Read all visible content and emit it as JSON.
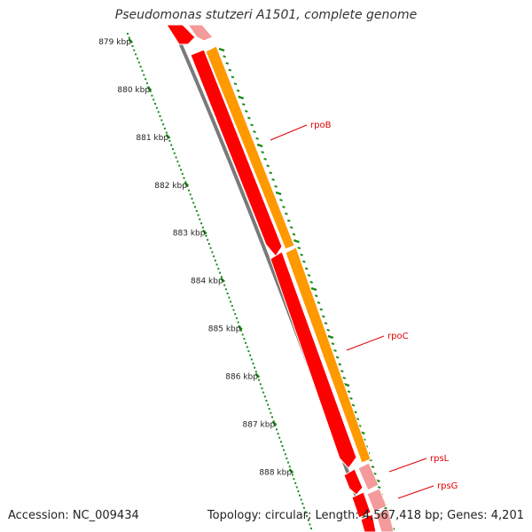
{
  "title": "Pseudomonas stutzeri A1501, complete genome",
  "accession": "Accession: NC_009434",
  "topology": "Topology: circular; Length: 4,567,418 bp; Genes: 4,201",
  "colors": {
    "backbone": "#7a7a7a",
    "cds_forward": "#ff0000",
    "cds_forward_light": "#f49a9a",
    "operon": "#ff9900",
    "ticks": "#1a8a1a",
    "label": "#e00000"
  },
  "scale": {
    "unit": "kbp",
    "labels": [
      "879 kbp",
      "880 kbp",
      "881 kbp",
      "882 kbp",
      "883 kbp",
      "884 kbp",
      "885 kbp",
      "886 kbp",
      "887 kbp",
      "888 kbp"
    ]
  },
  "genes": [
    {
      "name": "rpoB"
    },
    {
      "name": "rpoC"
    },
    {
      "name": "rpsL"
    },
    {
      "name": "rpsG"
    }
  ]
}
